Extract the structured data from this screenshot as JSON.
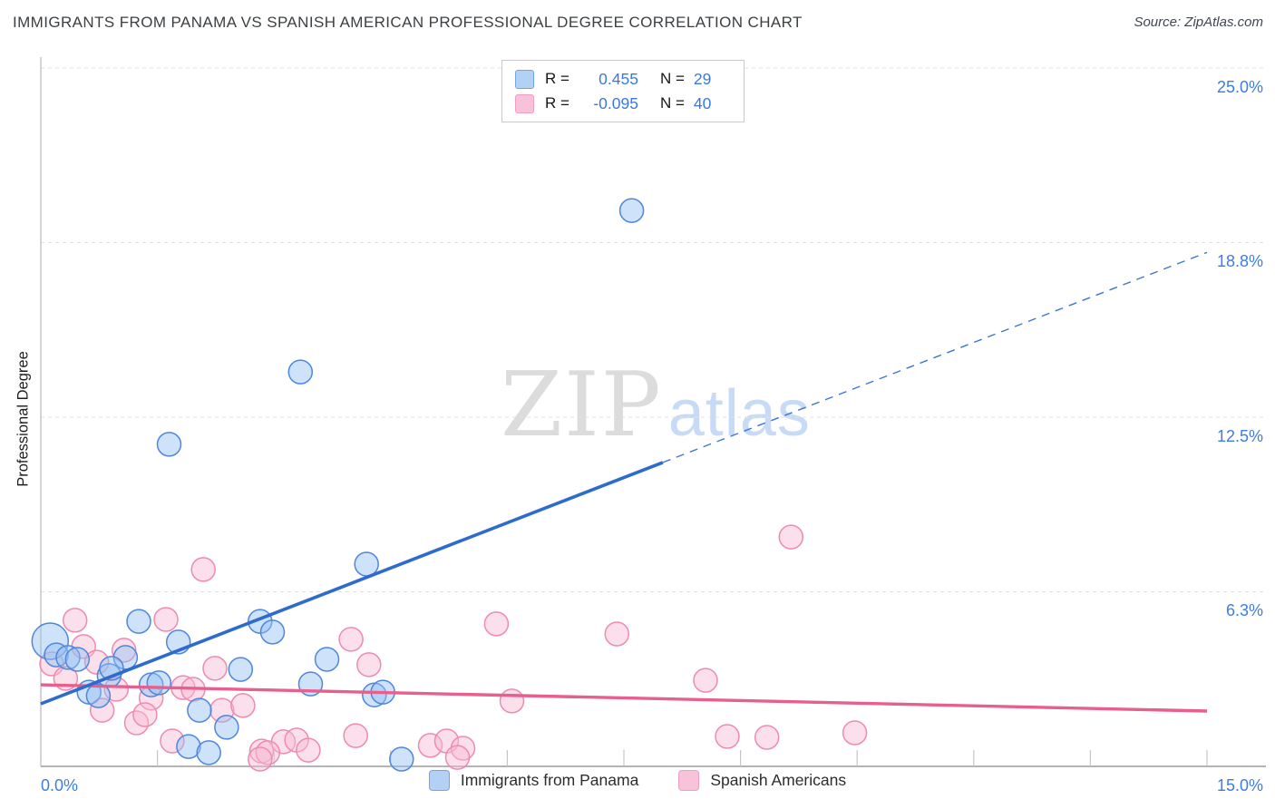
{
  "header": {
    "title": "IMMIGRANTS FROM PANAMA VS SPANISH AMERICAN PROFESSIONAL DEGREE CORRELATION CHART",
    "source": "Source: ZipAtlas.com"
  },
  "stats": {
    "rows": [
      {
        "series": "Immigrants from Panama",
        "r_label": "R =",
        "r_value": "0.455",
        "n_label": "N =",
        "n_value": "29"
      },
      {
        "series": "Spanish Americans",
        "r_label": "R =",
        "r_value": "-0.095",
        "n_label": "N =",
        "n_value": "40"
      }
    ]
  },
  "watermark": {
    "zip": "ZIP",
    "atlas": "atlas"
  },
  "axes": {
    "y_label": "Professional Degree",
    "y_ticks": [
      {
        "label": "25.0%",
        "value": 25
      },
      {
        "label": "18.8%",
        "value": 18.75
      },
      {
        "label": "12.5%",
        "value": 12.5
      },
      {
        "label": "6.3%",
        "value": 6.25
      }
    ],
    "x_ticks": [
      {
        "label": "0.0%",
        "value": 0
      },
      {
        "label": "15.0%",
        "value": 15
      }
    ]
  },
  "legend": {
    "items": [
      {
        "label": "Immigrants from Panama",
        "series": "panama"
      },
      {
        "label": "Spanish Americans",
        "series": "spanish"
      }
    ]
  },
  "colors": {
    "accent_blue": "#3e7ce4",
    "panama_fill": "#bcd4f2",
    "panama_stroke": "#4f86de",
    "spanish_fill": "#f9cadd",
    "spanish_stroke": "#ee8ab1",
    "trend_blue": "#2e6bcd",
    "trend_pink": "#e75f8d"
  },
  "chart_data": {
    "type": "scatter",
    "title": "Immigrants from Panama vs Spanish American Professional Degree Correlation Chart",
    "xlabel": "",
    "ylabel": "Professional Degree",
    "xlim": [
      0,
      15
    ],
    "ylim": [
      0,
      25
    ],
    "x_tick_interval": 1.5,
    "grid_y_values": [
      6.25,
      12.5,
      18.75,
      25
    ],
    "grid": "horizontal-dashed",
    "legend_position": "bottom",
    "series": [
      {
        "name": "Immigrants from Panama",
        "R": 0.455,
        "N": 29,
        "points": [
          [
            0.12,
            4.48,
            20
          ],
          [
            0.2,
            3.99
          ],
          [
            0.35,
            3.9
          ],
          [
            0.47,
            3.83
          ],
          [
            1.09,
            3.9
          ],
          [
            1.26,
            5.19
          ],
          [
            0.88,
            3.25
          ],
          [
            0.91,
            3.51
          ],
          [
            0.62,
            2.66
          ],
          [
            0.74,
            2.53
          ],
          [
            1.42,
            2.92
          ],
          [
            1.52,
            2.99
          ],
          [
            1.77,
            4.45
          ],
          [
            2.04,
            2.01
          ],
          [
            2.57,
            3.47
          ],
          [
            2.39,
            1.4
          ],
          [
            1.9,
            0.71
          ],
          [
            2.16,
            0.49
          ],
          [
            2.82,
            5.19
          ],
          [
            2.98,
            4.81
          ],
          [
            3.68,
            3.83
          ],
          [
            3.47,
            2.95
          ],
          [
            4.29,
            2.56
          ],
          [
            4.4,
            2.66
          ],
          [
            4.64,
            0.26
          ],
          [
            4.19,
            7.24
          ],
          [
            3.34,
            14.12
          ],
          [
            1.65,
            11.53
          ],
          [
            7.6,
            19.9
          ]
        ],
        "trend": {
          "solid": [
            [
              0,
              2.24
            ],
            [
              8.0,
              10.88
            ]
          ],
          "dashed": [
            [
              8.0,
              10.88
            ],
            [
              15,
              18.4
            ]
          ]
        }
      },
      {
        "name": "Spanish Americans",
        "R": -0.095,
        "N": 40,
        "points": [
          [
            0.44,
            5.23
          ],
          [
            0.14,
            3.67
          ],
          [
            0.55,
            4.29
          ],
          [
            0.72,
            3.73
          ],
          [
            1.61,
            5.26
          ],
          [
            1.07,
            4.16
          ],
          [
            0.32,
            3.15
          ],
          [
            0.97,
            2.76
          ],
          [
            1.42,
            2.44
          ],
          [
            0.79,
            2.01
          ],
          [
            1.23,
            1.56
          ],
          [
            1.34,
            1.85
          ],
          [
            1.83,
            2.82
          ],
          [
            1.96,
            2.76
          ],
          [
            2.24,
            3.51
          ],
          [
            2.33,
            2.01
          ],
          [
            2.6,
            2.18
          ],
          [
            1.69,
            0.91
          ],
          [
            2.84,
            0.55
          ],
          [
            3.99,
            4.55
          ],
          [
            4.22,
            3.64
          ],
          [
            5.86,
            5.1
          ],
          [
            6.06,
            2.34
          ],
          [
            7.41,
            4.74
          ],
          [
            8.55,
            3.08
          ],
          [
            9.65,
            8.21
          ],
          [
            8.83,
            1.07
          ],
          [
            9.34,
            1.04
          ],
          [
            10.47,
            1.2
          ],
          [
            4.05,
            1.1
          ],
          [
            3.12,
            0.88
          ],
          [
            3.29,
            0.94
          ],
          [
            2.92,
            0.49
          ],
          [
            2.82,
            0.26
          ],
          [
            3.44,
            0.58
          ],
          [
            5.01,
            0.75
          ],
          [
            5.22,
            0.91
          ],
          [
            5.43,
            0.65
          ],
          [
            5.36,
            0.32
          ],
          [
            2.09,
            7.05
          ]
        ],
        "trend": {
          "solid": [
            [
              0,
              2.92
            ],
            [
              15,
              1.98
            ]
          ]
        }
      }
    ]
  }
}
